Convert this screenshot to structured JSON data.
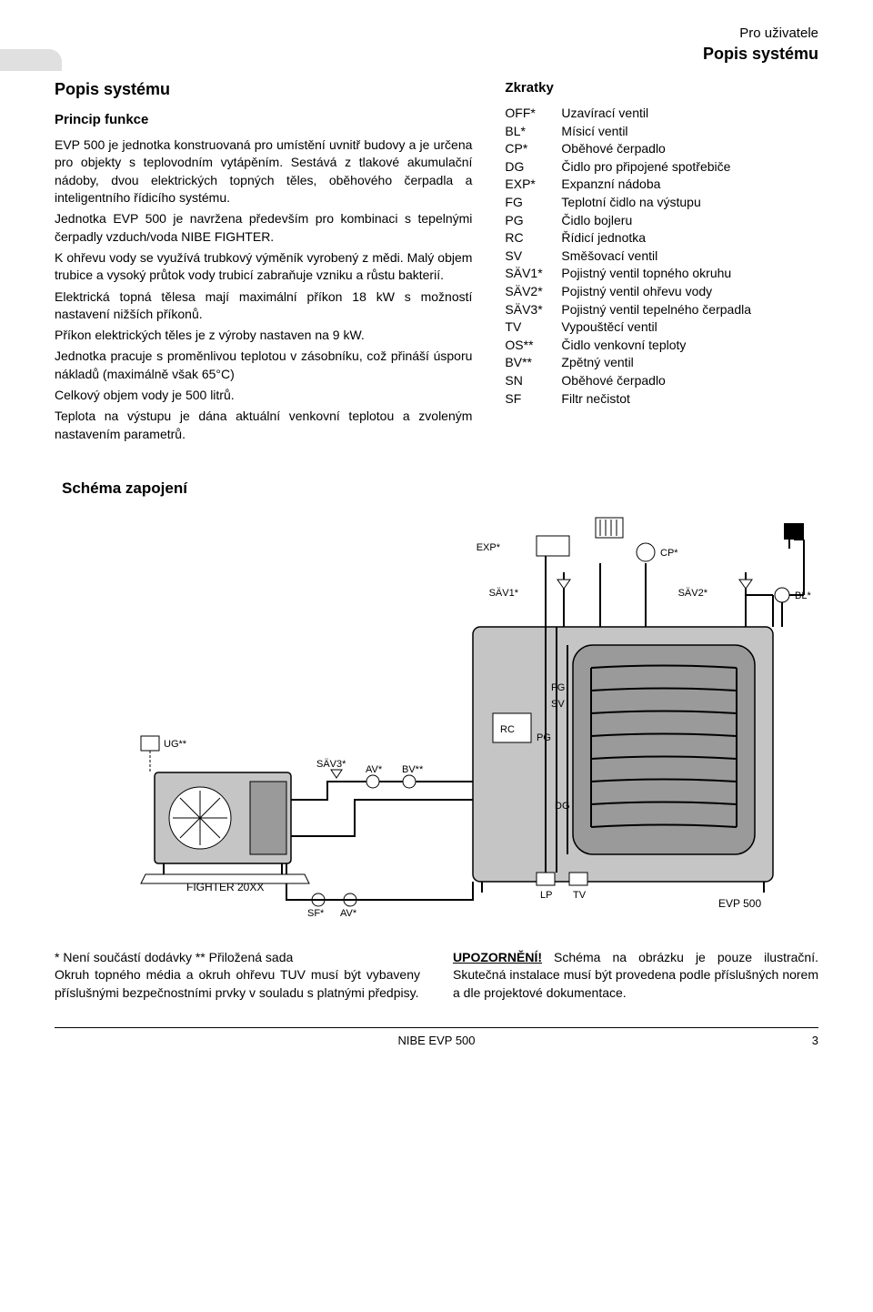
{
  "header": {
    "user_note": "Pro uživatele",
    "section": "Popis systému"
  },
  "left": {
    "title": "Popis systému",
    "subtitle": "Princip funkce",
    "p1": "EVP 500 je jednotka konstruovaná pro umístění uvnitř budovy a je určena pro objekty s teplovodním vytápěním. Sestává z tlakové akumulační nádoby, dvou elektrických topných těles, oběhového čerpadla a inteligentního řídicího systému.",
    "p2": "Jednotka EVP 500 je navržena především pro kombinaci s tepelnými čerpadly vzduch/voda NIBE FIGHTER.",
    "p3": "K ohřevu vody se využívá trubkový výměník vyrobený z mědi. Malý objem trubice  a vysoký průtok vody trubicí zabraňuje vzniku a růstu bakterií.",
    "p4": "Elektrická topná tělesa mají maximální příkon 18 kW s možností nastavení nižších příkonů.",
    "p5": "Příkon elektrických těles je z výroby nastaven na 9 kW.",
    "p6": "Jednotka pracuje s proměnlivou teplotou v zásobníku, což přináší úsporu nákladů (maximálně však 65°C)",
    "p7": "Celkový objem vody je 500 litrů.",
    "p8": "Teplota na výstupu je dána aktuální venkovní teplotou a zvoleným nastavením parametrů."
  },
  "right": {
    "title": "Zkratky",
    "items": [
      {
        "code": "OFF*",
        "desc": "Uzavírací ventil"
      },
      {
        "code": "BL*",
        "desc": "Mísicí ventil"
      },
      {
        "code": "CP*",
        "desc": "Oběhové čerpadlo"
      },
      {
        "code": "DG",
        "desc": "Čidlo pro připojené spotřebiče"
      },
      {
        "code": "EXP*",
        "desc": "Expanzní nádoba"
      },
      {
        "code": "FG",
        "desc": "Teplotní čidlo na výstupu"
      },
      {
        "code": "PG",
        "desc": "Čidlo bojleru"
      },
      {
        "code": "RC",
        "desc": "Řídicí jednotka"
      },
      {
        "code": "SV",
        "desc": "Směšovací ventil"
      },
      {
        "code": "SÄV1*",
        "desc": "Pojistný ventil topného okruhu"
      },
      {
        "code": "SÄV2*",
        "desc": "Pojistný ventil ohřevu vody"
      },
      {
        "code": "SÄV3*",
        "desc": "Pojistný ventil tepelného čerpadla"
      },
      {
        "code": "TV",
        "desc": "Vypouštěcí ventil"
      },
      {
        "code": "OS**",
        "desc": "Čidlo venkovní teploty"
      },
      {
        "code": "BV**",
        "desc": "Zpětný ventil"
      },
      {
        "code": "SN",
        "desc": "Oběhové čerpadlo"
      },
      {
        "code": "SF",
        "desc": "Filtr nečistot"
      }
    ]
  },
  "schema": {
    "title": "Schéma zapojení",
    "labels": {
      "exp": "EXP*",
      "cp": "CP*",
      "sav1": "SÄV1*",
      "sav2": "SÄV2*",
      "bl": "BL*",
      "fg": "FG",
      "sv": "SV",
      "rc": "RC",
      "pg": "PG",
      "ug": "UG**",
      "sav3": "SÄV3*",
      "av": "AV*",
      "bv": "BV**",
      "dg": "DG",
      "sf": "SF*",
      "av2": "AV*",
      "lp": "LP",
      "tv": "TV",
      "fighter": "FIGHTER 20XX",
      "evp": "EVP 500"
    },
    "colors": {
      "unit_fill": "#c5c5c5",
      "coil_fill": "#9a9a9a",
      "line": "#000000",
      "text": "#000000",
      "bg": "#ffffff"
    }
  },
  "bottom": {
    "left_note": "* Není součástí dodávky    ** Přiložená sada",
    "left_body": "Okruh topného média a okruh ohřevu TUV musí být vybaveny příslušnými bezpečnostními prvky v souladu s platnými předpisy.",
    "right_label": "UPOZORNĚNÍ!",
    "right_body": " Schéma na obrázku je pouze ilustrační. Skutečná instalace musí být provedena podle příslušných norem a dle projektové dokumentace."
  },
  "footer": {
    "center": "NIBE EVP 500",
    "page": "3"
  }
}
